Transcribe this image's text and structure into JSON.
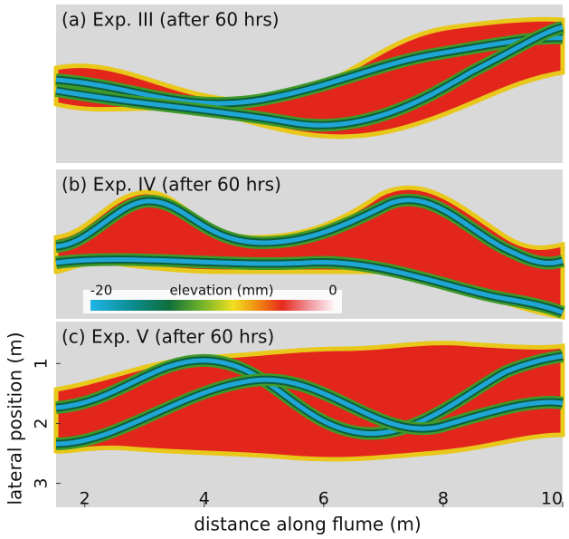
{
  "figure": {
    "panels": [
      {
        "title": "(a) Exp. III (after 60 hrs)"
      },
      {
        "title": "(b) Exp. IV (after 60 hrs)"
      },
      {
        "title": "(c) Exp. V (after 60 hrs)"
      }
    ],
    "colorbar": {
      "label": "elevation (mm)",
      "range": [
        -20,
        0
      ],
      "ticks": [
        -20,
        0
      ]
    },
    "x_axis": {
      "label": "distance along flume (m)",
      "lim": [
        1.52,
        10
      ],
      "ticks": [
        2,
        4,
        6,
        8,
        10
      ]
    },
    "y_axis": {
      "label": "lateral position (m)",
      "lim": [
        0.3,
        3.4
      ],
      "ticks": [
        1,
        2,
        3
      ]
    }
  }
}
